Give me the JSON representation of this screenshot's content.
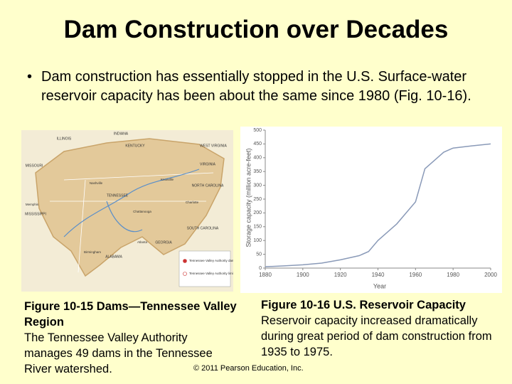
{
  "title": "Dam Construction over Decades",
  "bullet": "Dam construction has essentially stopped in the U.S. Surface-water reservoir capacity has been about the same since 1980 (Fig. 10-16).",
  "map": {
    "labels": [
      "ILLINOIS",
      "INDIANA",
      "KENTUCKY",
      "WEST VIRGINIA",
      "VIRGINIA",
      "MISSOURI",
      "TENNESSEE",
      "NORTH CAROLINA",
      "SOUTH CAROLINA",
      "MISSISSIPPI",
      "GEORGIA",
      "ALABAMA",
      "Memphis",
      "Nashville",
      "Knoxville",
      "Charlotte",
      "Chattanooga",
      "Birmingham",
      "Atlanta"
    ],
    "legend": [
      "Tennessee Valley Authority dam",
      "Tennessee Valley Authority limits"
    ]
  },
  "captions": {
    "left": {
      "title": "Figure 10-15 Dams—Tennessee Valley Region",
      "text": "The Tennessee Valley Authority manages 49 dams in the Tennessee River watershed."
    },
    "right": {
      "title": "Figure 10-16 U.S. Reservoir Capacity",
      "text": "Reservoir capacity increased dramatically during great period of dam construction from 1935 to 1975."
    }
  },
  "copyright": "© 2011 Pearson Education, Inc.",
  "chart_data": {
    "type": "line",
    "ylabel": "Storage capacity (million acre-feet)",
    "xlabel": "Year",
    "x": [
      1880,
      1890,
      1900,
      1910,
      1920,
      1930,
      1935,
      1940,
      1945,
      1950,
      1955,
      1960,
      1965,
      1970,
      1975,
      1980,
      1990,
      2000
    ],
    "values": [
      5,
      8,
      12,
      18,
      30,
      45,
      60,
      100,
      130,
      160,
      200,
      240,
      360,
      390,
      420,
      435,
      443,
      450
    ],
    "color": "#8a9ab8",
    "xlim": [
      1880,
      2000
    ],
    "xticks": [
      1880,
      1900,
      1920,
      1940,
      1960,
      1980,
      2000
    ],
    "ylim": [
      0,
      500
    ],
    "yticks": [
      0,
      50,
      100,
      150,
      200,
      250,
      300,
      350,
      400,
      450,
      500
    ]
  }
}
